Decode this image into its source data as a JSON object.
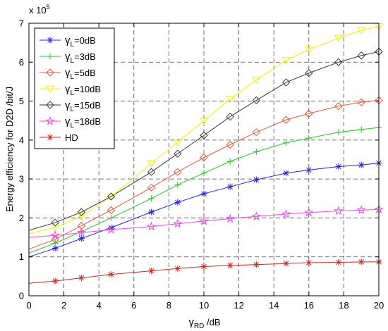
{
  "chart_data": {
    "type": "line",
    "xlabel_main": "γ",
    "xlabel_sub": "RD",
    "xlabel_unit": " /dB",
    "ylabel": "Energy efficiency for D2D /bit/J",
    "y_exponent_base": "x 10",
    "y_exponent_power": "5",
    "xlim": [
      0,
      20
    ],
    "ylim": [
      0,
      7
    ],
    "grid": true,
    "legend_position": "top-left",
    "x_ticks": [
      0,
      2,
      4,
      6,
      8,
      10,
      12,
      14,
      16,
      18,
      20
    ],
    "y_ticks": [
      0,
      1,
      2,
      3,
      4,
      5,
      6,
      7
    ],
    "series": [
      {
        "legend_main": "γ",
        "legend_sub": "L",
        "legend_suffix": "=0dB",
        "color": "#2323e0",
        "marker": "asterisk",
        "x": [
          0,
          1.5,
          3.0,
          4.7,
          7.0,
          8.5,
          10.0,
          11.5,
          13.0,
          14.7,
          16.0,
          17.7,
          19.0,
          20.0
        ],
        "values": [
          1.0,
          1.22,
          1.47,
          1.75,
          2.15,
          2.4,
          2.62,
          2.8,
          2.98,
          3.15,
          3.23,
          3.32,
          3.36,
          3.41
        ]
      },
      {
        "legend_main": "γ",
        "legend_sub": "L",
        "legend_suffix": "=3dB",
        "color": "#22cc22",
        "marker": "plus",
        "x": [
          0,
          1.5,
          3.0,
          4.7,
          7.0,
          8.5,
          10.0,
          11.5,
          13.0,
          14.7,
          16.0,
          17.7,
          19.0,
          20.0
        ],
        "values": [
          1.1,
          1.35,
          1.65,
          2.0,
          2.5,
          2.85,
          3.15,
          3.45,
          3.7,
          3.93,
          4.05,
          4.2,
          4.27,
          4.32
        ]
      },
      {
        "legend_main": "γ",
        "legend_sub": "L",
        "legend_suffix": "=5dB",
        "color": "#e05a3a",
        "marker": "diamond",
        "x": [
          0,
          1.5,
          3.0,
          4.7,
          7.0,
          8.5,
          10.0,
          11.5,
          13.0,
          14.7,
          16.0,
          17.7,
          19.0,
          20.0
        ],
        "values": [
          1.2,
          1.45,
          1.8,
          2.2,
          2.78,
          3.18,
          3.55,
          3.88,
          4.2,
          4.52,
          4.68,
          4.87,
          4.97,
          5.02
        ]
      },
      {
        "legend_main": "γ",
        "legend_sub": "L",
        "legend_suffix": "=10dB",
        "color": "#f2f200",
        "marker": "triangle-down",
        "x": [
          0,
          1.5,
          3.0,
          4.7,
          7.0,
          8.5,
          10.0,
          11.5,
          13.0,
          14.7,
          16.0,
          17.7,
          19.0,
          20.0
        ],
        "values": [
          1.6,
          1.75,
          2.05,
          2.55,
          3.4,
          3.95,
          4.5,
          5.05,
          5.55,
          6.05,
          6.32,
          6.62,
          6.82,
          6.92
        ]
      },
      {
        "legend_main": "γ",
        "legend_sub": "L",
        "legend_suffix": "=15dB",
        "color": "#3a3a3a",
        "marker": "diamond",
        "x": [
          0,
          1.5,
          3.0,
          4.7,
          7.0,
          8.5,
          10.0,
          11.5,
          13.0,
          14.7,
          16.0,
          17.7,
          19.0,
          20.0
        ],
        "values": [
          1.68,
          1.88,
          2.15,
          2.55,
          3.18,
          3.65,
          4.12,
          4.6,
          5.02,
          5.48,
          5.72,
          6.0,
          6.17,
          6.27
        ]
      },
      {
        "legend_main": "γ",
        "legend_sub": "L",
        "legend_suffix": "=18dB",
        "color": "#e64ce6",
        "marker": "star",
        "x": [
          0,
          1.5,
          3.0,
          4.7,
          7.0,
          8.5,
          10.0,
          11.5,
          13.0,
          14.7,
          16.0,
          17.7,
          19.0,
          20.0
        ],
        "values": [
          1.5,
          1.55,
          1.62,
          1.7,
          1.78,
          1.85,
          1.92,
          1.98,
          2.04,
          2.1,
          2.14,
          2.18,
          2.2,
          2.22
        ]
      },
      {
        "legend_main": "HD",
        "legend_sub": "",
        "legend_suffix": "",
        "color": "#c8281c",
        "marker": "asterisk",
        "x": [
          0,
          1.5,
          3.0,
          4.7,
          7.0,
          8.5,
          10.0,
          11.5,
          13.0,
          14.7,
          16.0,
          17.7,
          19.0,
          20.0
        ],
        "values": [
          0.32,
          0.38,
          0.46,
          0.55,
          0.64,
          0.7,
          0.75,
          0.78,
          0.8,
          0.83,
          0.85,
          0.86,
          0.87,
          0.87
        ]
      }
    ]
  }
}
